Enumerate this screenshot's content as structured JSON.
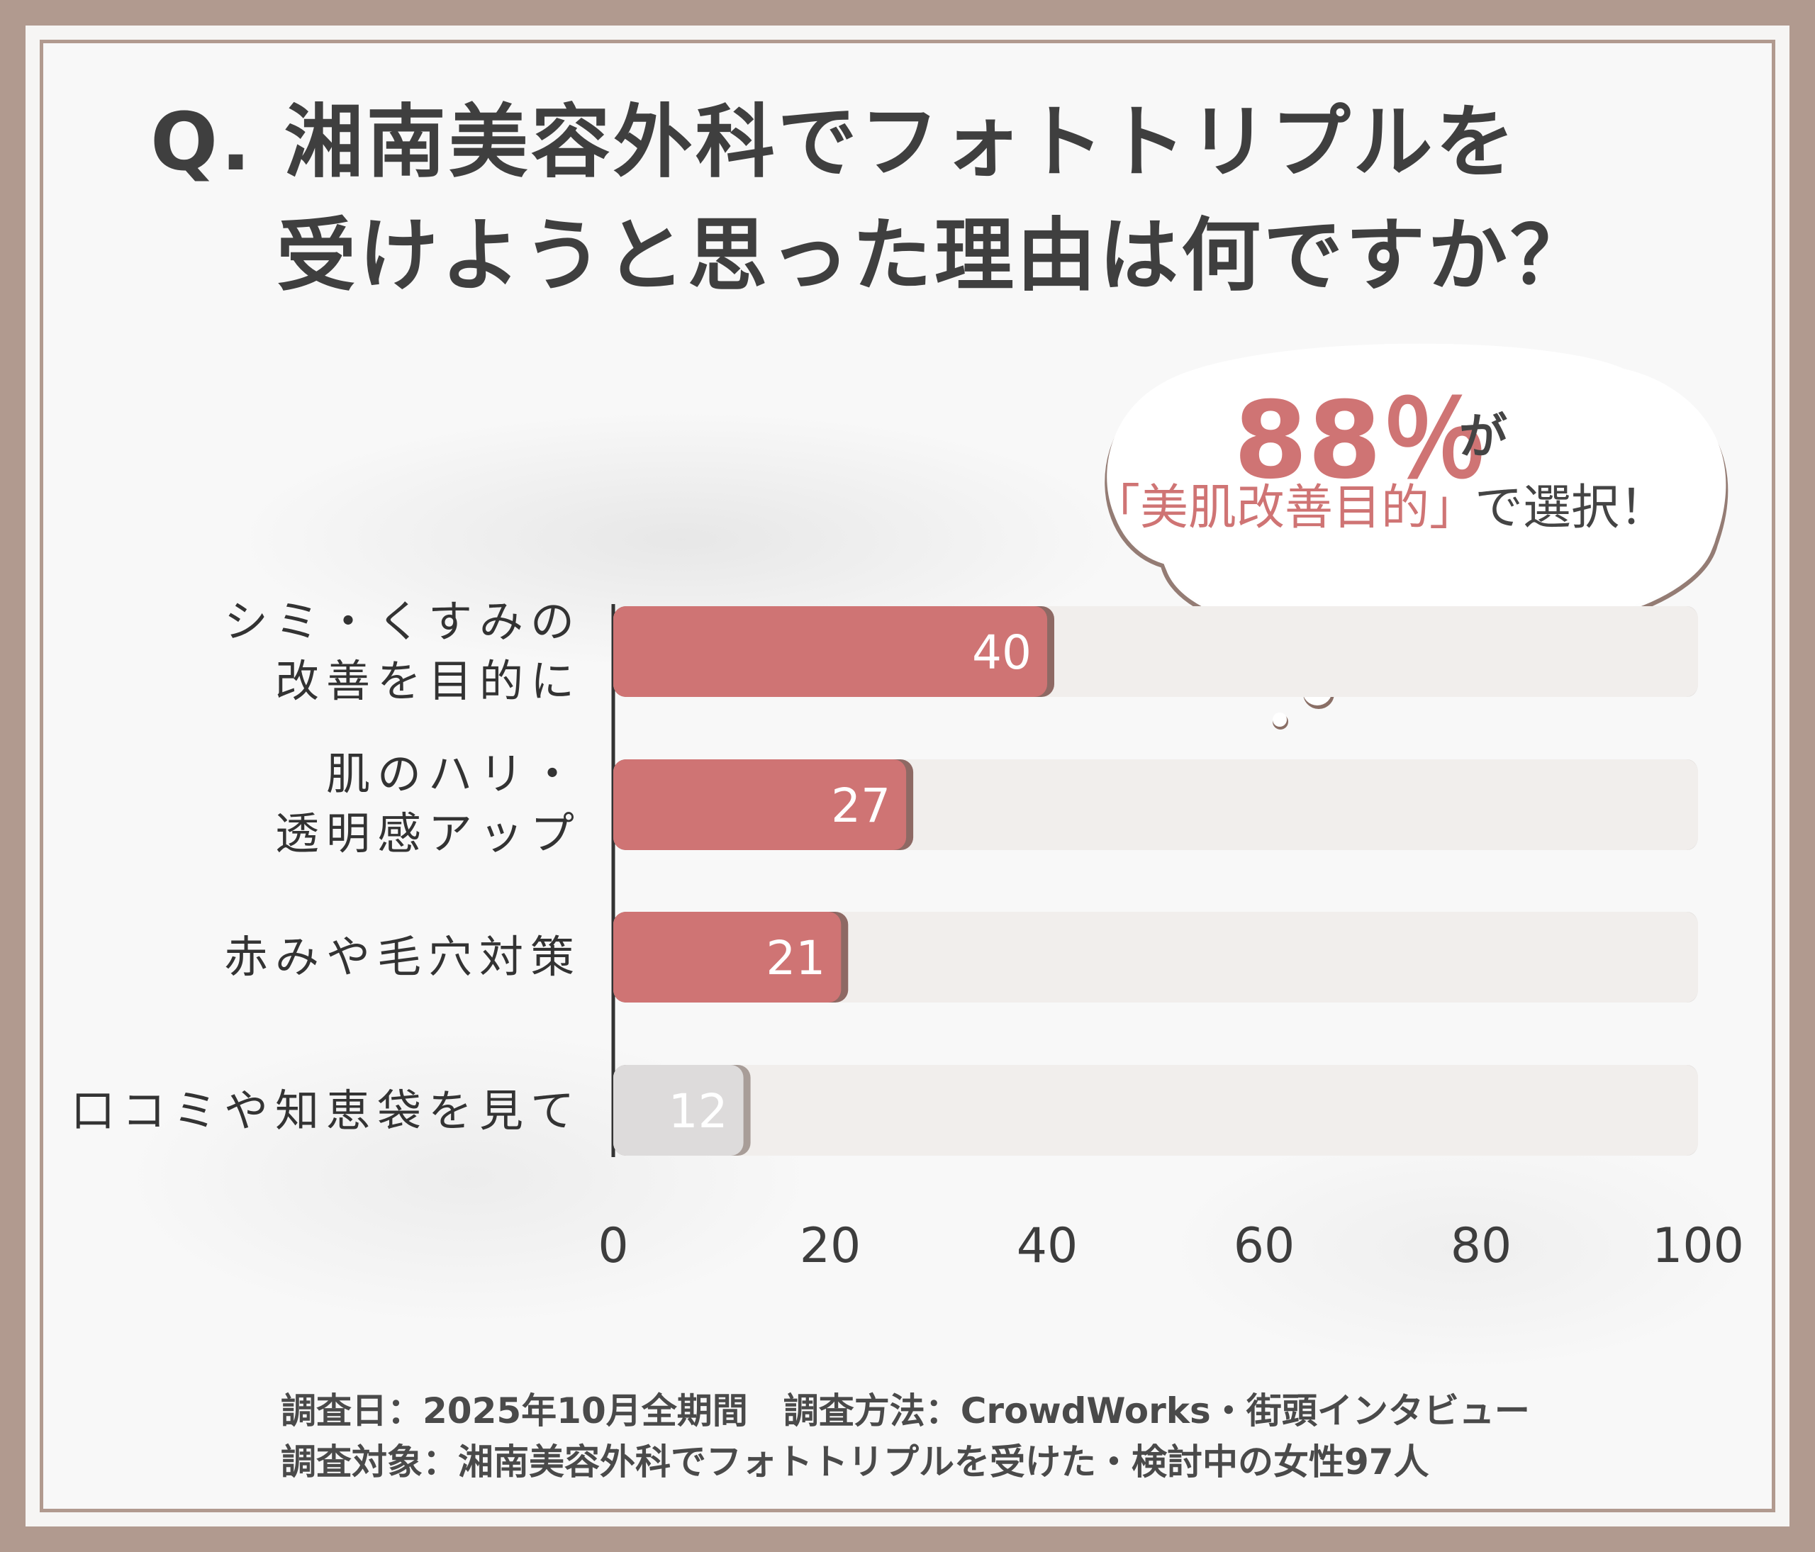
{
  "title": {
    "line1": "Q. 湘南美容外科でフォトトリプルを",
    "line2": "受けようと思った理由は何ですか？"
  },
  "callout": {
    "percent": "88％",
    "suffix": "が",
    "tag": "「美肌改善目的」",
    "selected": "で選択！"
  },
  "colors": {
    "highlight_bar": "#cf7474",
    "highlight_shadow": "#8e6964",
    "muted_bar": "#dddbdb",
    "muted_shadow": "#a89d98",
    "track": "#f1eeec",
    "frame": "#b19a8f",
    "accent_text": "#cf7474"
  },
  "chart_data": {
    "type": "bar",
    "orientation": "horizontal",
    "categories": [
      "シミ・くすみの\n改善を目的に",
      "肌のハリ・\n透明感アップ",
      "赤みや毛穴対策",
      "口コミや知恵袋を見て"
    ],
    "values": [
      40,
      27,
      21,
      12
    ],
    "highlighted": [
      true,
      true,
      true,
      false
    ],
    "xlim": [
      0,
      100
    ],
    "xticks": [
      "0",
      "20",
      "40",
      "60",
      "80",
      "100"
    ],
    "grid": false,
    "legend": "none"
  },
  "footer": {
    "line1": "調査日：2025年10月全期間　調査方法：CrowdWorks・街頭インタビュー",
    "line2": "調査対象：湘南美容外科でフォトトリプルを受けた・検討中の女性97人"
  }
}
